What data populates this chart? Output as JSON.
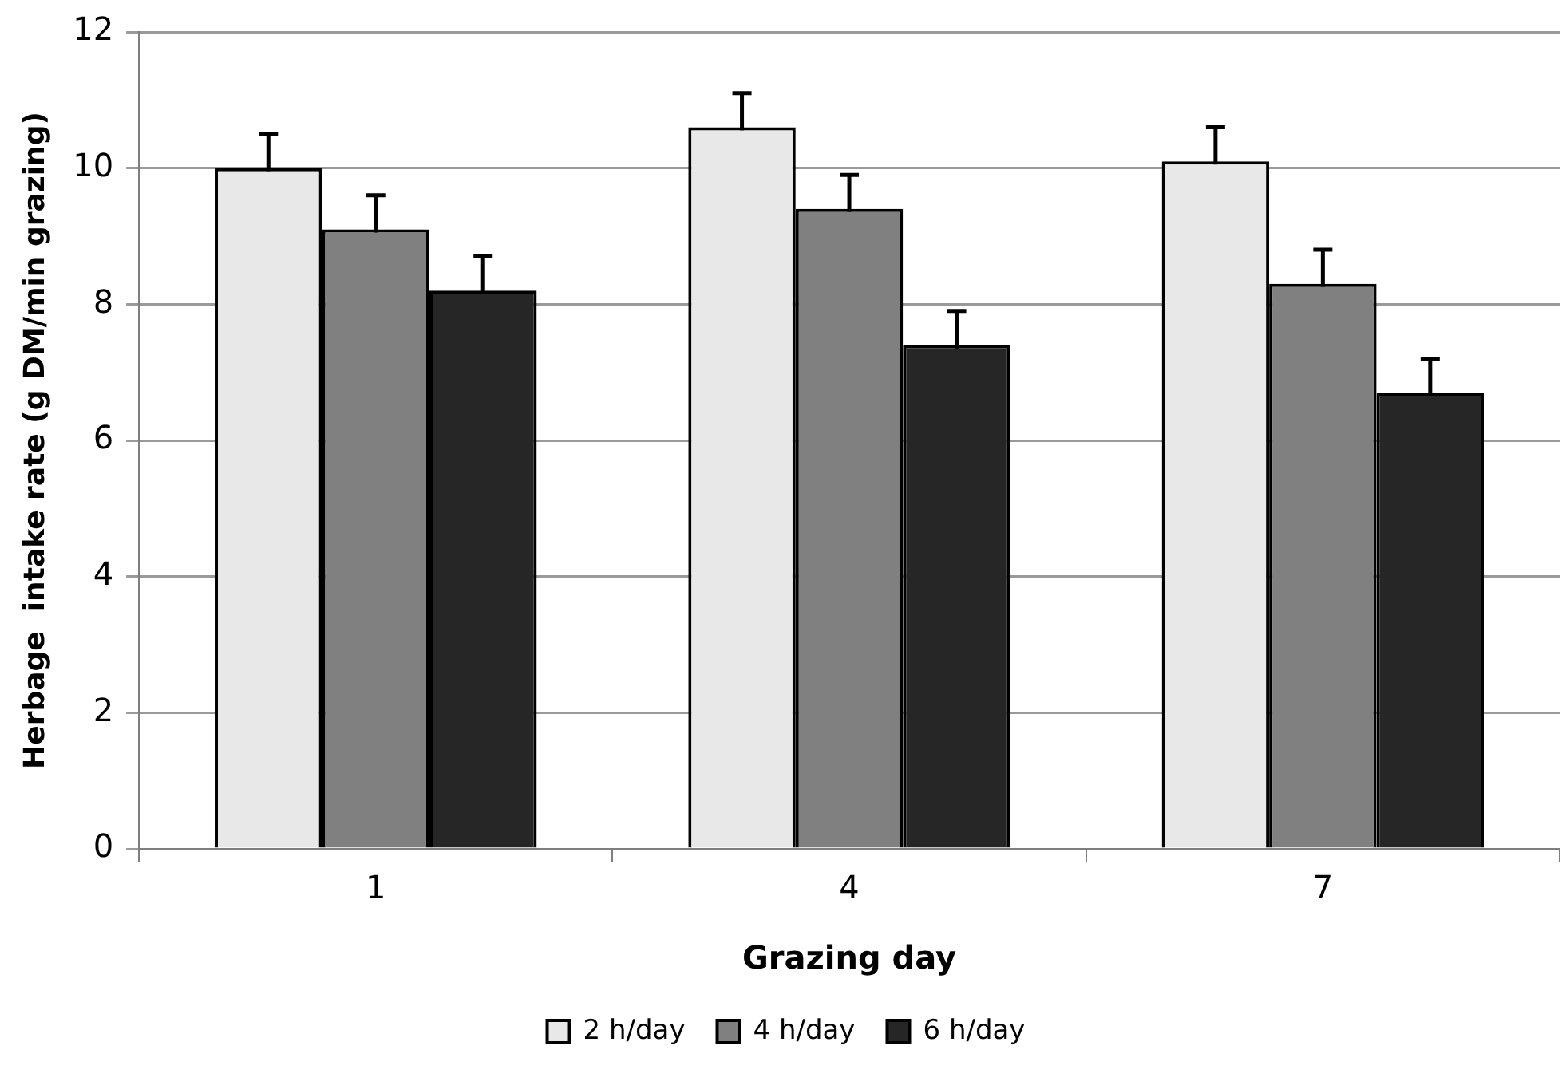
{
  "chart_data": {
    "type": "bar",
    "xlabel": "Grazing day",
    "ylabel": "Herbage  intake rate (g DM/min grazing)",
    "categories": [
      "1",
      "4",
      "7"
    ],
    "series": [
      {
        "name": "2 h/day",
        "color": "#e8e8e8",
        "values": [
          10.0,
          10.6,
          10.1
        ],
        "errors": [
          0.5,
          0.5,
          0.5
        ]
      },
      {
        "name": "4 h/day",
        "color": "#808080",
        "values": [
          9.1,
          9.4,
          8.3
        ],
        "errors": [
          0.5,
          0.5,
          0.5
        ]
      },
      {
        "name": "6 h/day",
        "color": "#262626",
        "values": [
          8.2,
          7.4,
          6.7
        ],
        "errors": [
          0.5,
          0.5,
          0.5
        ]
      }
    ],
    "ylim": [
      0,
      12
    ],
    "yticks": [
      0,
      2,
      4,
      6,
      8,
      10,
      12
    ],
    "grid": "y",
    "legend": "bottom"
  }
}
